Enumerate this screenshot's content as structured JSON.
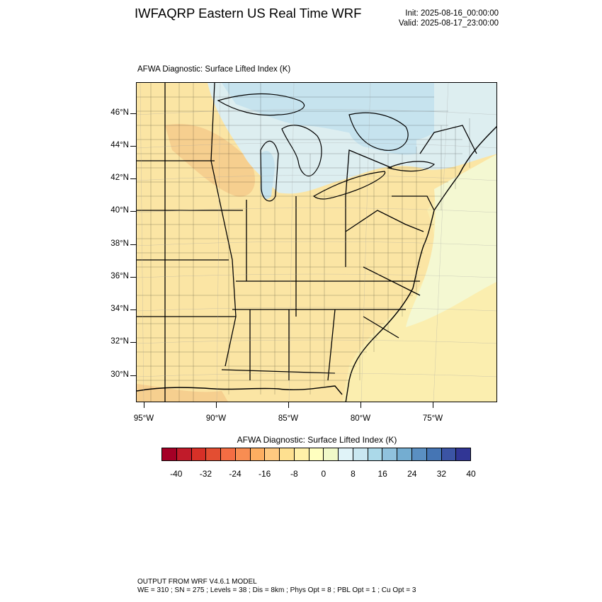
{
  "header": {
    "title": "IWFAQRP Eastern US Real Time WRF",
    "init": "Init: 2025-08-16_00:00:00",
    "valid": "Valid: 2025-08-17_23:00:00"
  },
  "plot": {
    "title": "AFWA Diagnostic: Surface Lifted Index   (K)",
    "lat_labels": [
      "46°N",
      "44°N",
      "42°N",
      "40°N",
      "38°N",
      "36°N",
      "34°N",
      "32°N",
      "30°N"
    ],
    "lon_labels": [
      "95°W",
      "90°W",
      "85°W",
      "80°W",
      "75°W"
    ]
  },
  "colorbar": {
    "title": "AFWA Diagnostic: Surface Lifted Index  (K)",
    "labels": [
      "-40",
      "-32",
      "-24",
      "-16",
      "-8",
      "0",
      "8",
      "16",
      "24",
      "32",
      "40"
    ],
    "colors": [
      "#a50026",
      "#c11b2a",
      "#d73027",
      "#e34e32",
      "#f46d43",
      "#f88d52",
      "#fdae61",
      "#fec980",
      "#fee090",
      "#fff0a8",
      "#ffffbf",
      "#f0f9c8",
      "#e0f3f8",
      "#c9e7f1",
      "#abd9e9",
      "#90c2dd",
      "#74add1",
      "#5a8fc2",
      "#4575b4",
      "#3b54a4",
      "#313695"
    ]
  },
  "map_colors": {
    "land_base": "#fbe5a4",
    "warm_patch": "#f5c98a",
    "ocean_near": "#fbeeaf",
    "ocean_far": "#f4f8d2",
    "lakes_north": "#c6e3ee",
    "cool_land": "#ddeef0",
    "borders": "#000000"
  },
  "footer": {
    "line1": "OUTPUT FROM WRF V4.6.1 MODEL",
    "line2": "WE = 310 ; SN = 275 ; Levels = 38 ; Dis = 8km ; Phys Opt = 8 ; PBL Opt = 1 ; Cu Opt = 3"
  }
}
